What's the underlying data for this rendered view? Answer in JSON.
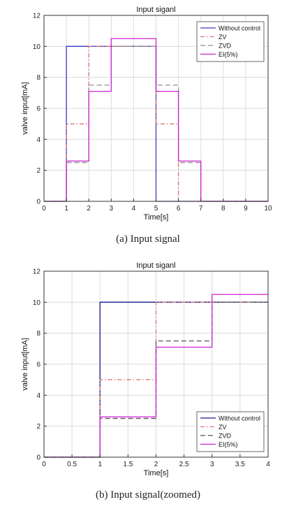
{
  "chart_data": [
    {
      "type": "line",
      "title": "Input siganl",
      "xlabel": "Time[s]",
      "ylabel": "valve input[mA]",
      "xlim": [
        0,
        10
      ],
      "ylim": [
        0,
        12
      ],
      "xticks": [
        0,
        1,
        2,
        3,
        4,
        5,
        6,
        7,
        8,
        9,
        10
      ],
      "yticks": [
        0,
        2,
        4,
        6,
        8,
        10,
        12
      ],
      "xtick_labels": [
        "0",
        "1",
        "2",
        "3",
        "4",
        "5",
        "6",
        "7",
        "8",
        "9",
        "10"
      ],
      "ytick_labels": [
        "0",
        "2",
        "4",
        "6",
        "8",
        "10",
        "12"
      ],
      "grid": true,
      "legend_position": "top-right",
      "series": [
        {
          "name": "Without control",
          "color": "#3b3bc8",
          "dash": "solid",
          "x": [
            0,
            1,
            1,
            5,
            5,
            10
          ],
          "y": [
            0,
            0,
            10,
            10,
            0,
            0
          ]
        },
        {
          "name": "ZV",
          "color": "#e07070",
          "dash": "dashdot",
          "x": [
            0,
            1,
            1,
            2,
            2,
            5,
            5,
            6,
            6,
            10
          ],
          "y": [
            0,
            0,
            5,
            5,
            10,
            10,
            5,
            5,
            0,
            0
          ]
        },
        {
          "name": "ZVD",
          "color": "#909090",
          "dash": "dashed",
          "x": [
            0,
            1,
            1,
            2,
            2,
            3,
            3,
            5,
            5,
            6,
            6,
            7,
            7,
            10
          ],
          "y": [
            0,
            0,
            2.5,
            2.5,
            7.5,
            7.5,
            10,
            10,
            7.5,
            7.5,
            2.5,
            2.5,
            0,
            0
          ]
        },
        {
          "name": "EI(5%)",
          "color": "#cc22cc",
          "dash": "solid",
          "x": [
            0,
            1,
            1,
            2,
            2,
            3,
            3,
            5,
            5,
            6,
            6,
            7,
            7,
            10
          ],
          "y": [
            0,
            0,
            2.6,
            2.6,
            7.1,
            7.1,
            10.5,
            10.5,
            7.1,
            7.1,
            2.6,
            2.6,
            0,
            0
          ]
        }
      ]
    },
    {
      "type": "line",
      "title": "Input siganl",
      "xlabel": "Time[s]",
      "ylabel": "valve input[mA]",
      "xlim": [
        0,
        4
      ],
      "ylim": [
        0,
        12
      ],
      "xticks": [
        0,
        0.5,
        1,
        1.5,
        2,
        2.5,
        3,
        3.5,
        4
      ],
      "yticks": [
        0,
        2,
        4,
        6,
        8,
        10,
        12
      ],
      "xtick_labels": [
        "0",
        "0.5",
        "1",
        "1.5",
        "2",
        "2.5",
        "3",
        "3.5",
        "4"
      ],
      "ytick_labels": [
        "0",
        "2",
        "4",
        "6",
        "8",
        "10",
        "12"
      ],
      "grid": true,
      "legend_position": "bottom-right",
      "series": [
        {
          "name": "Without control",
          "color": "#1a1a8c",
          "dash": "solid",
          "x": [
            0,
            1,
            1,
            4
          ],
          "y": [
            0,
            0,
            10,
            10
          ]
        },
        {
          "name": "ZV",
          "color": "#e07070",
          "dash": "dashdot",
          "x": [
            0,
            1,
            1,
            2,
            2,
            4
          ],
          "y": [
            0,
            0,
            5,
            5,
            10,
            10
          ]
        },
        {
          "name": "ZVD",
          "color": "#555555",
          "dash": "dashed",
          "x": [
            0,
            1,
            1,
            2,
            2,
            3,
            3,
            4
          ],
          "y": [
            0,
            0,
            2.5,
            2.5,
            7.5,
            7.5,
            10,
            10
          ]
        },
        {
          "name": "EI(5%)",
          "color": "#cc22cc",
          "dash": "solid",
          "x": [
            0,
            1,
            1,
            2,
            2,
            3,
            3,
            4
          ],
          "y": [
            0,
            0,
            2.6,
            2.6,
            7.1,
            7.1,
            10.5,
            10.5
          ]
        }
      ]
    }
  ],
  "captions": {
    "a": "(a)  Input  signal",
    "b": "(b)  Input  signal(zoomed)"
  }
}
